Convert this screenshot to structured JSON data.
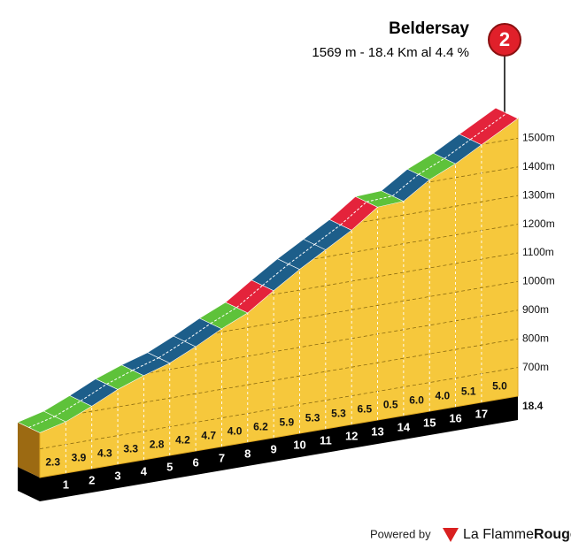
{
  "chart_data": {
    "type": "profile",
    "title": "Beldersay",
    "subtitle": "1569 m - 18.4 Km al 4.4 %",
    "badge": "2",
    "summit_elevation": 1569,
    "distance": 18.4,
    "distance_label": "18.4",
    "km_marks": [
      1,
      2,
      3,
      4,
      5,
      6,
      7,
      8,
      9,
      10,
      11,
      12,
      13,
      14,
      15,
      16,
      17
    ],
    "gradients": [
      2.3,
      3.9,
      4.3,
      3.3,
      2.8,
      4.2,
      4.7,
      4.0,
      6.2,
      5.9,
      5.3,
      5.3,
      6.5,
      0.5,
      6.0,
      4.0,
      5.1,
      5.0
    ],
    "value_labels": [
      "2.3",
      "3.9",
      "4.3",
      "3.3",
      "2.8",
      "4.2",
      "4.7",
      "4.0",
      "6.2",
      "5.9",
      "5.3",
      "5.3",
      "6.5",
      "0.5",
      "6.0",
      "4.0",
      "5.1",
      "5.0"
    ],
    "segment_colors": [
      "#5ec23a",
      "#5ec23a",
      "#1d5e8a",
      "#5ec23a",
      "#1d5e8a",
      "#1d5e8a",
      "#1d5e8a",
      "#5ec23a",
      "#e4233b",
      "#1d5e8a",
      "#1d5e8a",
      "#1d5e8a",
      "#e4233b",
      "#5ec23a",
      "#1d5e8a",
      "#5ec23a",
      "#1d5e8a",
      "#e4233b"
    ],
    "ylim": [
      600,
      1600
    ],
    "yticks": [
      {
        "value": 700,
        "label": "700m"
      },
      {
        "value": 800,
        "label": "800m"
      },
      {
        "value": 900,
        "label": "900m"
      },
      {
        "value": 1000,
        "label": "1000m"
      },
      {
        "value": 1100,
        "label": "1100m"
      },
      {
        "value": 1200,
        "label": "1200m"
      },
      {
        "value": 1300,
        "label": "1300m"
      },
      {
        "value": 1400,
        "label": "1400m"
      },
      {
        "value": 1500,
        "label": "1500m"
      }
    ],
    "footer": {
      "prefix": "Powered by",
      "brand": "La Flamme",
      "brand_bold": "Rouge"
    }
  }
}
